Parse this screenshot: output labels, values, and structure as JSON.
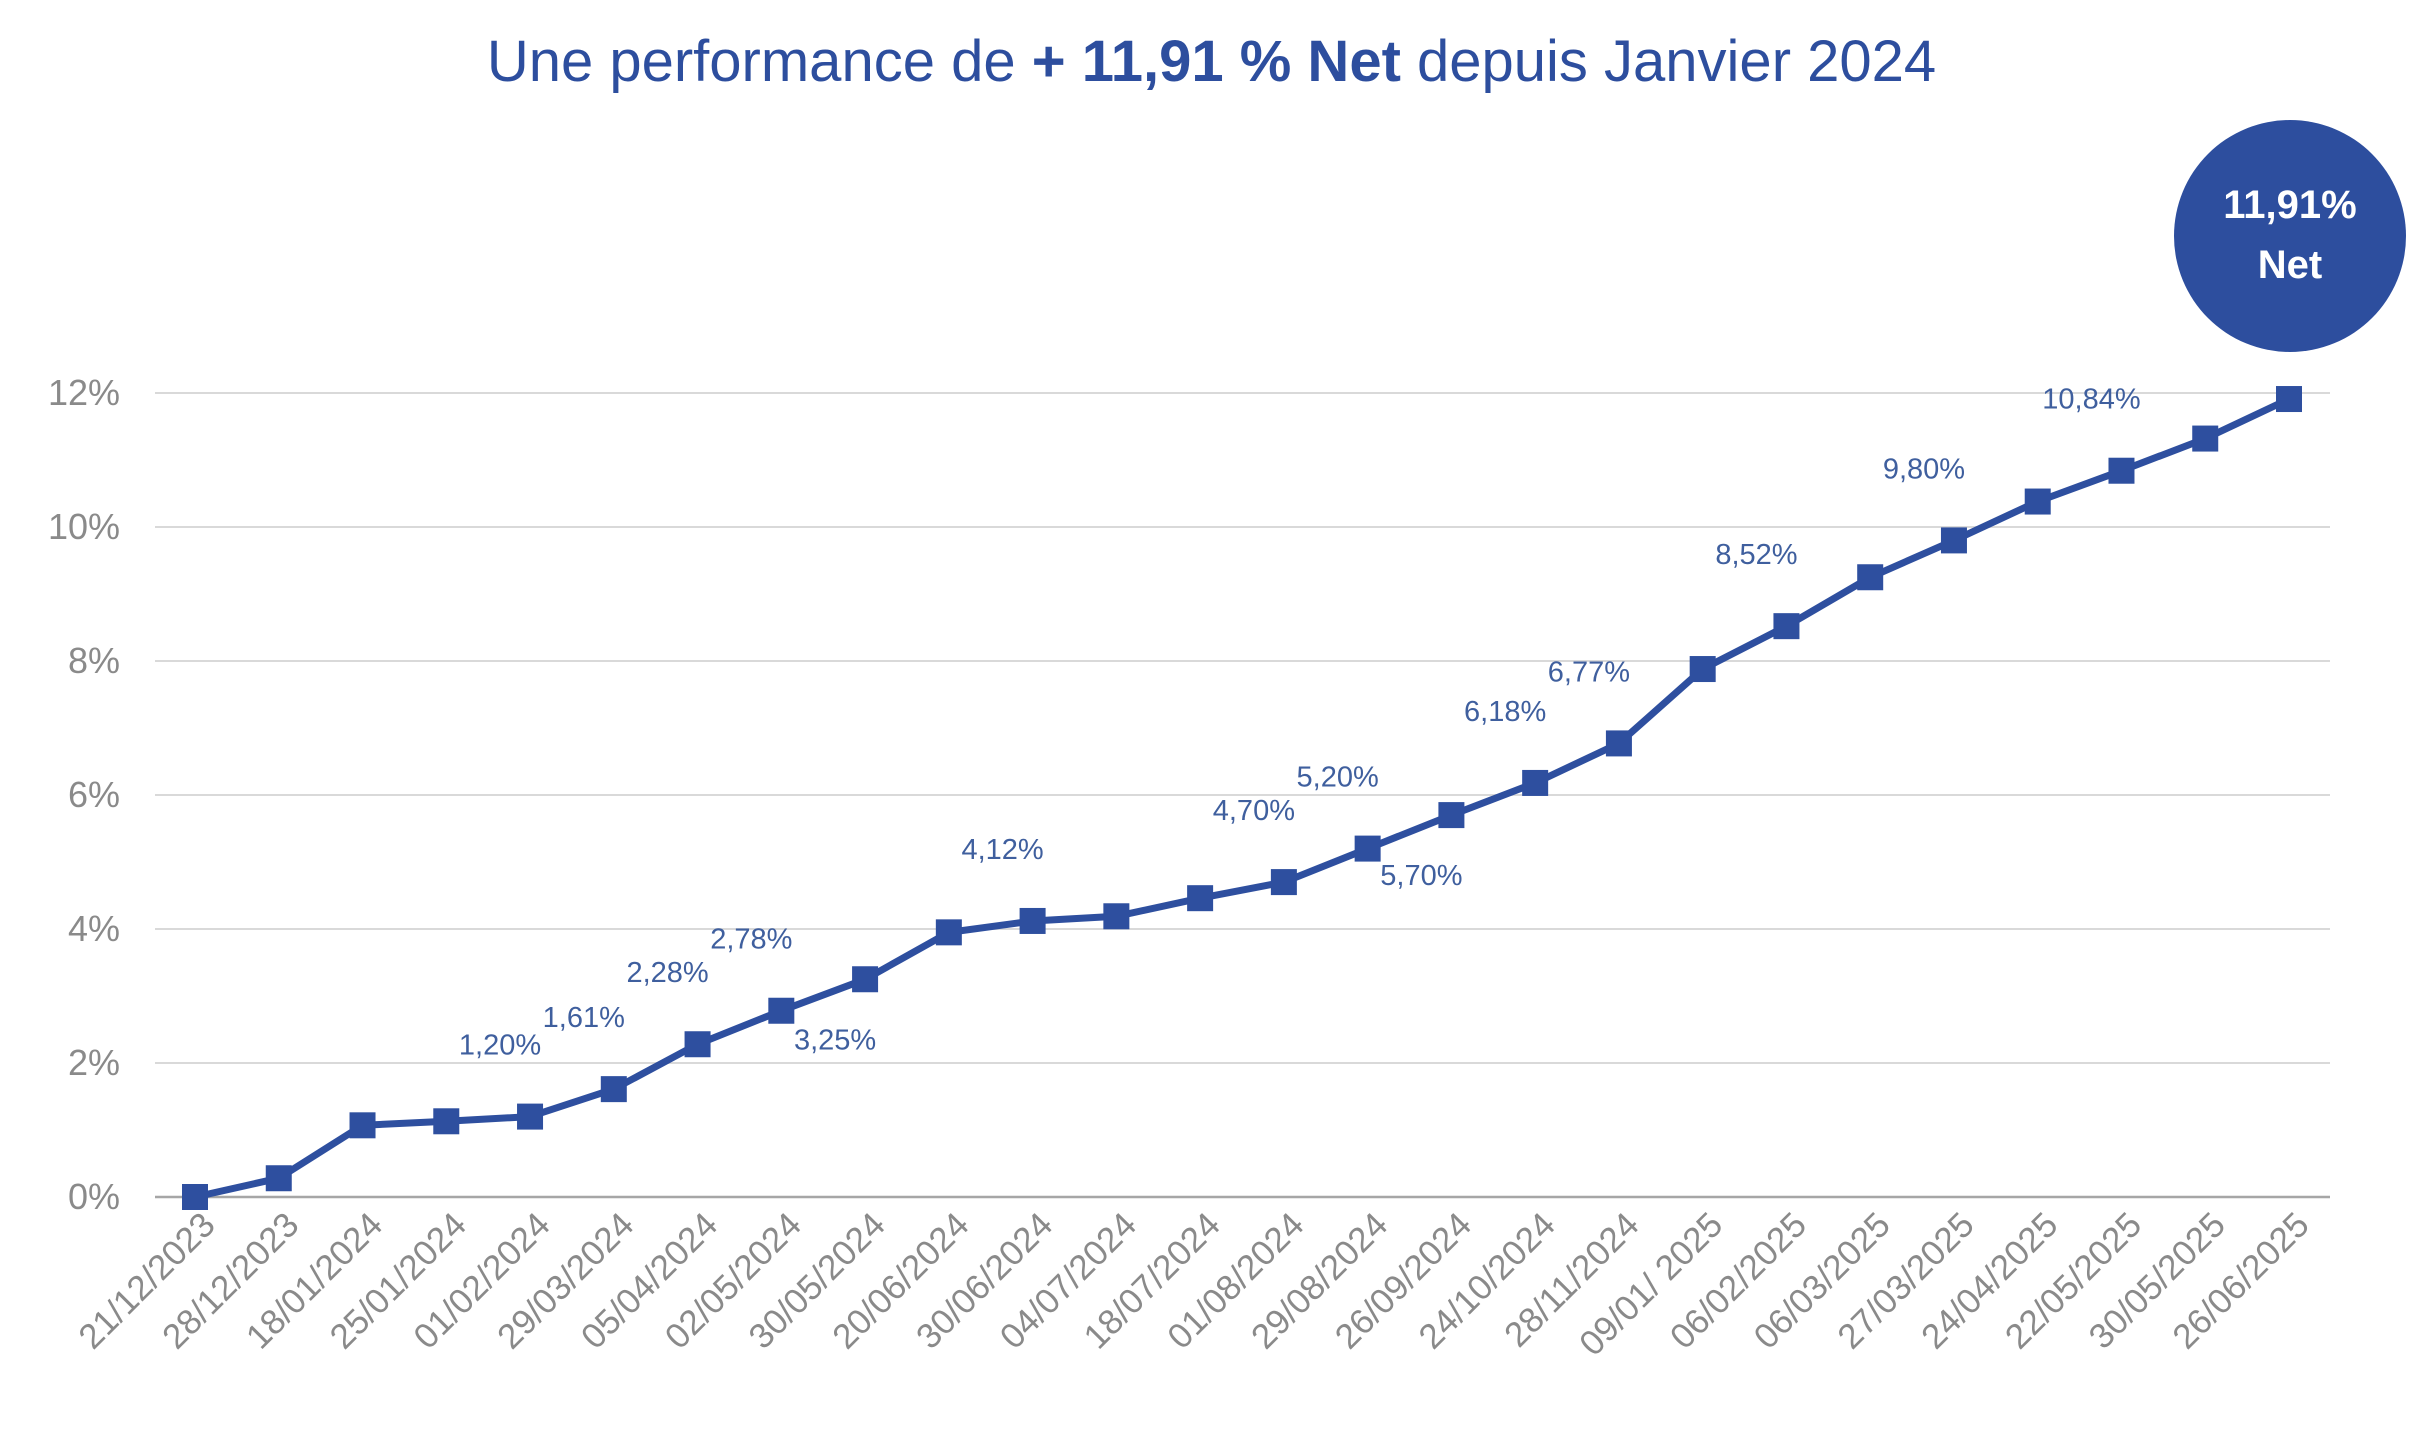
{
  "title": {
    "prefix": "Une performance de ",
    "highlight": "+ 11,91 % Net",
    "suffix": " depuis Janvier 2024"
  },
  "badge": {
    "line1": "11,91%",
    "line2": "Net"
  },
  "colors": {
    "accent": "#2d4e9e",
    "line": "#2e4f9f",
    "grid": "#d9d9d9",
    "axis": "#a6a6a6",
    "tick": "#8a8a8a",
    "label": "#3f5f9e"
  },
  "chart_data": {
    "type": "line",
    "title": "Une performance de + 11,91 % Net depuis Janvier 2024",
    "xlabel": "",
    "ylabel": "",
    "ylim": [
      0,
      12
    ],
    "yticks": [
      "0%",
      "2%",
      "4%",
      "6%",
      "8%",
      "10%",
      "12%"
    ],
    "grid": true,
    "categories": [
      "21/12/2023",
      "28/12/2023",
      "18/01/2024",
      "25/01/2024",
      "01/02/2024",
      "29/03/2024",
      "05/04/2024",
      "02/05/2024",
      "30/05/2024",
      "20/06/2024",
      "30/06/2024",
      "04/07/2024",
      "18/07/2024",
      "01/08/2024",
      "29/08/2024",
      "26/09/2024",
      "24/10/2024",
      "28/11/2024",
      "09/01/ 2025",
      "06/02/2025",
      "06/03/2025",
      "27/03/2025",
      "24/04/2025",
      "22/05/2025",
      "30/05/2025",
      "26/06/2025"
    ],
    "series": [
      {
        "values": [
          0,
          0.28,
          1.07,
          1.13,
          1.2,
          1.61,
          2.28,
          2.78,
          3.25,
          3.95,
          4.12,
          4.19,
          4.46,
          4.7,
          5.2,
          5.7,
          6.18,
          6.77,
          7.88,
          8.52,
          9.25,
          9.8,
          10.38,
          10.84,
          11.32,
          11.91
        ]
      }
    ],
    "data_labels": [
      {
        "index": 4,
        "text": "1,20%",
        "pos": "above"
      },
      {
        "index": 5,
        "text": "1,61%",
        "pos": "above"
      },
      {
        "index": 6,
        "text": "2,28%",
        "pos": "above"
      },
      {
        "index": 7,
        "text": "2,78%",
        "pos": "above"
      },
      {
        "index": 8,
        "text": "3,25%",
        "pos": "below"
      },
      {
        "index": 10,
        "text": "4,12%",
        "pos": "above"
      },
      {
        "index": 13,
        "text": "4,70%",
        "pos": "above"
      },
      {
        "index": 14,
        "text": "5,20%",
        "pos": "above"
      },
      {
        "index": 15,
        "text": "5,70%",
        "pos": "below"
      },
      {
        "index": 16,
        "text": "6,18%",
        "pos": "above"
      },
      {
        "index": 17,
        "text": "6,77%",
        "pos": "above"
      },
      {
        "index": 19,
        "text": "8,52%",
        "pos": "above"
      },
      {
        "index": 21,
        "text": "9,80%",
        "pos": "above"
      },
      {
        "index": 23,
        "text": "10,84%",
        "pos": "above"
      }
    ]
  }
}
